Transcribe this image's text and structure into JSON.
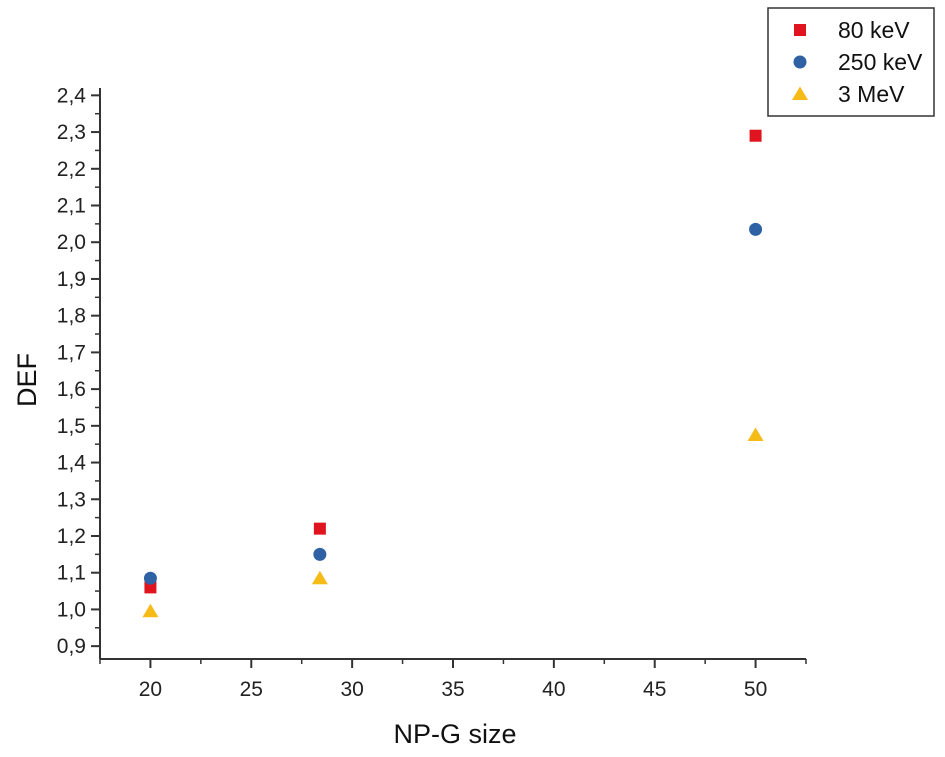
{
  "chart_data": {
    "type": "scatter",
    "title": "",
    "xlabel": "NP-G size",
    "ylabel": "DEF",
    "xlim": [
      17.5,
      52.5
    ],
    "ylim": [
      0.865,
      2.42
    ],
    "xticks": [
      20,
      25,
      30,
      35,
      40,
      45,
      50
    ],
    "xtick_labels": [
      "20",
      "25",
      "30",
      "35",
      "40",
      "45",
      "50"
    ],
    "yticks": [
      0.9,
      1.0,
      1.1,
      1.2,
      1.3,
      1.4,
      1.5,
      1.6,
      1.7,
      1.8,
      1.9,
      2.0,
      2.1,
      2.2,
      2.3,
      2.4
    ],
    "ytick_labels": [
      "0,9",
      "1,0",
      "1,1",
      "1,2",
      "1,3",
      "1,4",
      "1,5",
      "1,6",
      "1,7",
      "1,8",
      "1,9",
      "2,0",
      "2,1",
      "2,2",
      "2,3",
      "2,4"
    ],
    "grid": false,
    "legend_position": "top-right",
    "series": [
      {
        "name": "80 keV",
        "marker": "square",
        "color": "#e0141e",
        "x": [
          20,
          28.4,
          50
        ],
        "y": [
          1.06,
          1.22,
          2.29
        ]
      },
      {
        "name": "250 keV",
        "marker": "circle",
        "color": "#2e62a4",
        "x": [
          20,
          28.4,
          50
        ],
        "y": [
          1.085,
          1.15,
          2.035
        ]
      },
      {
        "name": "3 MeV",
        "marker": "triangle",
        "color": "#f5bb16",
        "x": [
          20,
          28.4,
          50
        ],
        "y": [
          0.995,
          1.085,
          1.475
        ]
      }
    ]
  }
}
